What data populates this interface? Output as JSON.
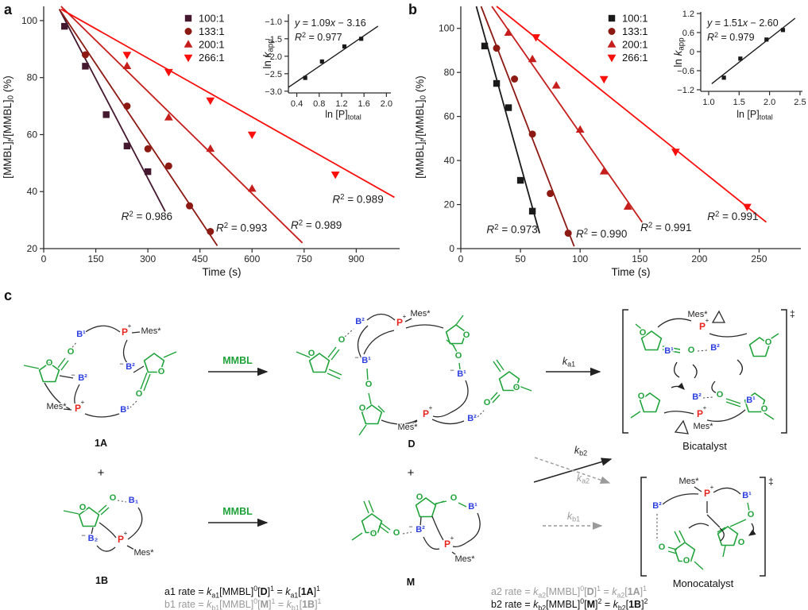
{
  "colors": {
    "series_100_a": "#44182e",
    "series_133": "#8c1a13",
    "series_200": "#c51e1c",
    "series_266": "#f90f0c",
    "series_100_b": "#1a1a1a",
    "green": "#1fa23a",
    "blue": "#2e3fe0",
    "red": "#e8251f",
    "gray": "#9a9a9a"
  },
  "panels": {
    "a": {
      "label": "a"
    },
    "b": {
      "label": "b"
    },
    "c": {
      "label": "c",
      "mmbl": "MMBL",
      "atoms": {
        "O": "O",
        "B1": "B¹",
        "B2": "B²",
        "B1s": "B₁",
        "B2s": "B₂",
        "P": "P",
        "plus": "+",
        "minus": "−",
        "mes": "Mes*"
      },
      "species": {
        "A": "1A",
        "B": "1B",
        "D": "D",
        "M": "M",
        "plus": "+"
      },
      "names": {
        "bicatalyst": "Bicatalyst",
        "monocatalyst": "Monocatalyst",
        "ddagger": "‡"
      },
      "k": {
        "ka1": [
          {
            "t": "k",
            "i": true
          },
          {
            "t": "a1",
            "sub": true
          }
        ],
        "kb2": [
          {
            "t": "k",
            "i": true
          },
          {
            "t": "b2",
            "sub": true
          }
        ],
        "ka2": [
          {
            "t": "k",
            "i": true
          },
          {
            "t": "a2",
            "sub": true
          }
        ],
        "kb1": [
          {
            "t": "k",
            "i": true
          },
          {
            "t": "b1",
            "sub": true
          }
        ]
      },
      "equations": {
        "a1": [
          {
            "t": "a1 rate = "
          },
          {
            "t": "k",
            "i": true
          },
          {
            "t": "a1",
            "sub": true
          },
          {
            "t": "[MMBL]"
          },
          {
            "t": "0",
            "sup": true
          },
          {
            "t": "["
          },
          {
            "t": "D",
            "b": true
          },
          {
            "t": "]"
          },
          {
            "t": "1",
            "sup": true
          },
          {
            "t": " = "
          },
          {
            "t": "k",
            "i": true
          },
          {
            "t": "a1",
            "sub": true
          },
          {
            "t": "["
          },
          {
            "t": "1A",
            "b": true
          },
          {
            "t": "]"
          },
          {
            "t": "1",
            "sup": true
          }
        ],
        "b1": [
          {
            "t": "b1 rate = "
          },
          {
            "t": "k",
            "i": true
          },
          {
            "t": "b1",
            "sub": true
          },
          {
            "t": "[MMBL]"
          },
          {
            "t": "0",
            "sup": true
          },
          {
            "t": "["
          },
          {
            "t": "M",
            "b": true
          },
          {
            "t": "]"
          },
          {
            "t": "1",
            "sup": true
          },
          {
            "t": " = "
          },
          {
            "t": "k",
            "i": true
          },
          {
            "t": "b1",
            "sub": true
          },
          {
            "t": "["
          },
          {
            "t": "1B",
            "b": true
          },
          {
            "t": "]"
          },
          {
            "t": "1",
            "sup": true
          }
        ],
        "a2": [
          {
            "t": "a2 rate = "
          },
          {
            "t": "k",
            "i": true
          },
          {
            "t": "a2",
            "sub": true
          },
          {
            "t": "[MMBL]"
          },
          {
            "t": "0",
            "sup": true
          },
          {
            "t": "["
          },
          {
            "t": "D",
            "b": true
          },
          {
            "t": "]"
          },
          {
            "t": "1",
            "sup": true
          },
          {
            "t": " = "
          },
          {
            "t": "k",
            "i": true
          },
          {
            "t": "a2",
            "sub": true
          },
          {
            "t": "["
          },
          {
            "t": "1A",
            "b": true
          },
          {
            "t": "]"
          },
          {
            "t": "1",
            "sup": true
          }
        ],
        "b2": [
          {
            "t": "b2 rate = "
          },
          {
            "t": "k",
            "i": true
          },
          {
            "t": "b2",
            "sub": true
          },
          {
            "t": "[MMBL]"
          },
          {
            "t": "0",
            "sup": true
          },
          {
            "t": "["
          },
          {
            "t": "M",
            "b": true
          },
          {
            "t": "]"
          },
          {
            "t": "2",
            "sup": true
          },
          {
            "t": " = "
          },
          {
            "t": "k",
            "i": true
          },
          {
            "t": "b2",
            "sub": true
          },
          {
            "t": "["
          },
          {
            "t": "1B",
            "b": true
          },
          {
            "t": "]"
          },
          {
            "t": "2",
            "sup": true
          }
        ]
      }
    }
  },
  "chart_data": [
    {
      "id": "panel-a-main",
      "type": "scatter",
      "xlabel": "Time (s)",
      "ylabel_segments": [
        {
          "t": "[MMBL]"
        },
        {
          "t": "t",
          "i": true,
          "sub": true
        },
        {
          "t": "/[MMBL]"
        },
        {
          "t": "0",
          "sub": true
        },
        {
          "t": " (%)"
        }
      ],
      "xlim": [
        0,
        1025
      ],
      "ylim": [
        20,
        105
      ],
      "xticks": [
        0,
        150,
        300,
        450,
        600,
        750,
        900
      ],
      "xtick_labels": [
        "0",
        "150",
        "300",
        "450",
        "600",
        "750",
        "900"
      ],
      "yticks": [
        20,
        40,
        60,
        80,
        100
      ],
      "ytick_labels": [
        "20",
        "40",
        "60",
        "80",
        "100"
      ],
      "series": [
        {
          "name": "100:1",
          "marker": "square",
          "color": "#44182e",
          "points": [
            [
              60,
              98
            ],
            [
              120,
              84
            ],
            [
              180,
              67
            ],
            [
              240,
              56
            ],
            [
              300,
              47
            ]
          ],
          "fit": [
            [
              45,
              104
            ],
            [
              350,
              33
            ]
          ],
          "r2": "0.986"
        },
        {
          "name": "133:1",
          "marker": "circle",
          "color": "#8c1a13",
          "points": [
            [
              120,
              88
            ],
            [
              240,
              70
            ],
            [
              300,
              55
            ],
            [
              360,
              49
            ],
            [
              420,
              35
            ],
            [
              480,
              26
            ]
          ],
          "fit": [
            [
              45,
              104
            ],
            [
              500,
              21
            ]
          ],
          "r2": "0.993"
        },
        {
          "name": "200:1",
          "marker": "triangle-up",
          "color": "#c51e1c",
          "points": [
            [
              240,
              84
            ],
            [
              360,
              66
            ],
            [
              480,
              55
            ],
            [
              600,
              41
            ]
          ],
          "fit": [
            [
              50,
              105
            ],
            [
              745,
              22
            ]
          ],
          "r2": "0.989"
        },
        {
          "name": "266:1",
          "marker": "triangle-down",
          "color": "#f90f0c",
          "points": [
            [
              240,
              88
            ],
            [
              360,
              82
            ],
            [
              480,
              72
            ],
            [
              600,
              60
            ],
            [
              840,
              46
            ]
          ],
          "fit": [
            [
              50,
              104
            ],
            [
              1010,
              38
            ]
          ],
          "r2": "0.989"
        }
      ],
      "annotations": [
        {
          "x": 297,
          "y": 30,
          "segs": [
            {
              "t": "R",
              "i": true
            },
            {
              "t": "2",
              "sup": true
            },
            {
              "t": " = 0.986"
            }
          ]
        },
        {
          "x": 570,
          "y": 26,
          "segs": [
            {
              "t": "R",
              "i": true
            },
            {
              "t": "2",
              "sup": true
            },
            {
              "t": " = 0.993"
            }
          ]
        },
        {
          "x": 785,
          "y": 27,
          "segs": [
            {
              "t": "R",
              "i": true
            },
            {
              "t": "2",
              "sup": true
            },
            {
              "t": " = 0.989"
            }
          ]
        },
        {
          "x": 905,
          "y": 36,
          "segs": [
            {
              "t": "R",
              "i": true
            },
            {
              "t": "2",
              "sup": true
            },
            {
              "t": " = 0.989"
            }
          ]
        }
      ]
    },
    {
      "id": "panel-a-inset",
      "type": "scatter",
      "equation": "y = 1.09x − 3.16",
      "r2": "0.977",
      "eq_segments": [
        [
          {
            "t": "y",
            "i": true
          },
          {
            "t": " = 1.09"
          },
          {
            "t": "x",
            "i": true
          },
          {
            "t": " − 3.16"
          }
        ],
        [
          {
            "t": "R",
            "i": true
          },
          {
            "t": "2",
            "sup": true
          },
          {
            "t": " = 0.977"
          }
        ]
      ],
      "xlabel_segments": [
        {
          "t": "ln [P]"
        },
        {
          "t": "total",
          "sub": true
        }
      ],
      "ylabel_segments": [
        {
          "t": "ln "
        },
        {
          "t": "k",
          "i": true
        },
        {
          "t": "app",
          "sub": true
        }
      ],
      "xlim": [
        0.25,
        2.08
      ],
      "ylim": [
        -3.05,
        -0.8
      ],
      "xticks": [
        0.4,
        0.8,
        1.2,
        1.6,
        2.0
      ],
      "xtick_labels": [
        "0.4",
        "0.8",
        "1.2",
        "1.6",
        "2.0"
      ],
      "yticks": [
        -1.0,
        -1.5,
        -2.0,
        -2.5,
        -3.0
      ],
      "ytick_labels": [
        "−1.0",
        "−1.5",
        "−2.0",
        "−2.5",
        "−3.0"
      ],
      "series": [
        {
          "name": "ln kapp",
          "marker": "square",
          "color": "#1a1a1a",
          "points": [
            [
              0.55,
              -2.62
            ],
            [
              0.85,
              -2.15
            ],
            [
              1.25,
              -1.72
            ],
            [
              1.55,
              -1.5
            ]
          ],
          "fit": [
            [
              0.25,
              -2.89
            ],
            [
              1.85,
              -1.14
            ]
          ]
        }
      ]
    },
    {
      "id": "panel-b-main",
      "type": "scatter",
      "xlabel": "Time (s)",
      "ylabel_segments": [
        {
          "t": "[MMBL]"
        },
        {
          "t": "t",
          "i": true,
          "sub": true
        },
        {
          "t": "/[MMBL]"
        },
        {
          "t": "0",
          "sub": true
        },
        {
          "t": " (%)"
        }
      ],
      "xlim": [
        0,
        285
      ],
      "ylim": [
        0,
        110
      ],
      "xticks": [
        0,
        50,
        100,
        150,
        200,
        250
      ],
      "xtick_labels": [
        "0",
        "50",
        "100",
        "150",
        "200",
        "250"
      ],
      "yticks": [
        0,
        20,
        40,
        60,
        80,
        100
      ],
      "ytick_labels": [
        "0",
        "20",
        "40",
        "60",
        "80",
        "100"
      ],
      "series": [
        {
          "name": "100:1",
          "marker": "square",
          "color": "#1a1a1a",
          "points": [
            [
              20,
              92
            ],
            [
              30,
              75
            ],
            [
              40,
              64
            ],
            [
              50,
              31
            ],
            [
              60,
              17
            ]
          ],
          "fit": [
            [
              13,
              110
            ],
            [
              66,
              7
            ]
          ],
          "r2": "0.973"
        },
        {
          "name": "133:1",
          "marker": "circle",
          "color": "#8c1a13",
          "points": [
            [
              30,
              91
            ],
            [
              45,
              77
            ],
            [
              60,
              52
            ],
            [
              75,
              25
            ],
            [
              90,
              7
            ]
          ],
          "fit": [
            [
              17,
              110
            ],
            [
              95,
              1
            ]
          ],
          "r2": "0.990"
        },
        {
          "name": "200:1",
          "marker": "triangle-up",
          "color": "#c51e1c",
          "points": [
            [
              40,
              98
            ],
            [
              60,
              86
            ],
            [
              80,
              74
            ],
            [
              100,
              54
            ],
            [
              120,
              35
            ],
            [
              140,
              19
            ]
          ],
          "fit": [
            [
              26,
              110
            ],
            [
              152,
              12
            ]
          ],
          "r2": "0.991"
        },
        {
          "name": "266:1",
          "marker": "triangle-down",
          "color": "#f90f0c",
          "points": [
            [
              63,
              96
            ],
            [
              120,
              77
            ],
            [
              180,
              44
            ],
            [
              240,
              19
            ]
          ],
          "fit": [
            [
              30,
              110
            ],
            [
              256,
              12
            ]
          ],
          "r2": "0.991"
        }
      ],
      "annotations": [
        {
          "x": 43,
          "y": 7,
          "segs": [
            {
              "t": "R",
              "i": true
            },
            {
              "t": "2",
              "sup": true
            },
            {
              "t": " = 0.973"
            }
          ]
        },
        {
          "x": 118,
          "y": 5,
          "segs": [
            {
              "t": "R",
              "i": true
            },
            {
              "t": "2",
              "sup": true
            },
            {
              "t": " = 0.990"
            }
          ]
        },
        {
          "x": 172,
          "y": 8,
          "segs": [
            {
              "t": "R",
              "i": true
            },
            {
              "t": "2",
              "sup": true
            },
            {
              "t": " = 0.991"
            }
          ]
        },
        {
          "x": 228,
          "y": 13,
          "segs": [
            {
              "t": "R",
              "i": true
            },
            {
              "t": "2",
              "sup": true
            },
            {
              "t": " = 0.991"
            }
          ]
        }
      ]
    },
    {
      "id": "panel-b-inset",
      "type": "scatter",
      "equation": "y = 1.51x − 2.60",
      "r2": "0.979",
      "eq_segments": [
        [
          {
            "t": "y",
            "i": true
          },
          {
            "t": " = 1.51"
          },
          {
            "t": "x",
            "i": true
          },
          {
            "t": " − 2.60"
          }
        ],
        [
          {
            "t": "R",
            "i": true
          },
          {
            "t": "2",
            "sup": true
          },
          {
            "t": " = 0.979"
          }
        ]
      ],
      "xlabel_segments": [
        {
          "t": "ln [P]"
        },
        {
          "t": "total",
          "sub": true
        }
      ],
      "ylabel_segments": [
        {
          "t": "ln "
        },
        {
          "t": "k",
          "i": true
        },
        {
          "t": "app",
          "sub": true
        }
      ],
      "xlim": [
        0.87,
        2.54
      ],
      "ylim": [
        -1.25,
        1.25
      ],
      "xticks": [
        1.0,
        1.5,
        2.0,
        2.5
      ],
      "xtick_labels": [
        "1.0",
        "1.5",
        "2.0",
        "2.5"
      ],
      "yticks": [
        1.2,
        0.6,
        0,
        -0.6,
        -1.2
      ],
      "ytick_labels": [
        "1.2",
        "0.6",
        "0",
        "−0.6",
        "−1.2"
      ],
      "series": [
        {
          "name": "ln kapp",
          "marker": "square",
          "color": "#1a1a1a",
          "points": [
            [
              1.25,
              -0.82
            ],
            [
              1.52,
              -0.22
            ],
            [
              1.95,
              0.38
            ],
            [
              2.22,
              0.68
            ]
          ],
          "fit": [
            [
              1.05,
              -1.01
            ],
            [
              2.42,
              1.05
            ]
          ]
        }
      ]
    }
  ]
}
